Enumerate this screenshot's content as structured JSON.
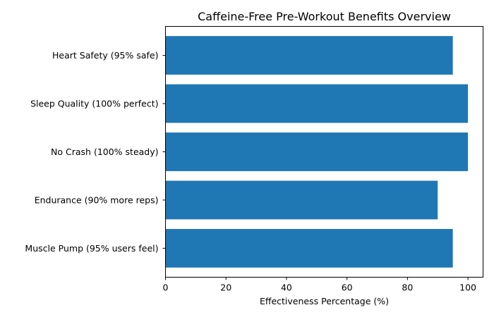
{
  "chart_data": {
    "type": "bar",
    "orientation": "horizontal",
    "title": "Caffeine-Free Pre-Workout Benefits Overview",
    "xlabel": "Effectiveness Percentage (%)",
    "ylabel": "",
    "categories": [
      "Muscle Pump (95% users feel)",
      "Endurance (90% more reps)",
      "No Crash (100% steady)",
      "Sleep Quality (100% perfect)",
      "Heart Safety (95% safe)"
    ],
    "values": [
      95,
      90,
      100,
      100,
      95
    ],
    "xlim": [
      0,
      105
    ],
    "xticks": [
      0,
      20,
      40,
      60,
      80,
      100
    ],
    "bar_color": "#1f77b4",
    "grid": false
  }
}
